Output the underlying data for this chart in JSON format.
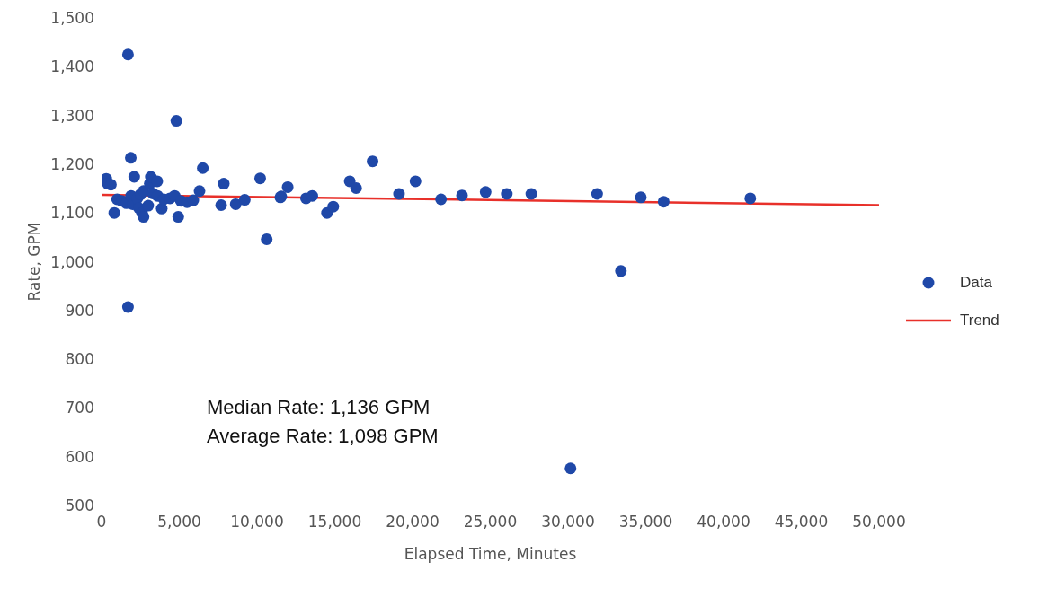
{
  "chart_data": {
    "type": "scatter",
    "xlabel": "Elapsed Time, Minutes",
    "ylabel": "Rate, GPM",
    "annotations": [
      "Median Rate: 1,136 GPM",
      "Average Rate: 1,098 GPM"
    ],
    "xlim": [
      0,
      50000
    ],
    "xticks": [
      0,
      {
        "value": 5000,
        "label": "5,000"
      },
      {
        "value": 10000,
        "label": "10,000"
      },
      {
        "value": 15000,
        "label": "15,000"
      },
      {
        "value": 20000,
        "label": "20,000"
      },
      {
        "value": 25000,
        "label": "25,000"
      },
      {
        "value": 30000,
        "label": "30,000"
      },
      {
        "value": 35000,
        "label": "35,000"
      },
      {
        "value": 40000,
        "label": "40,000"
      },
      {
        "value": 45000,
        "label": "45,000"
      },
      {
        "value": 50000,
        "label": "50,000"
      }
    ],
    "ylim": [
      500,
      1500
    ],
    "yticks": [
      500,
      600,
      700,
      800,
      900,
      {
        "value": 1000,
        "label": "1,000"
      },
      {
        "value": 1100,
        "label": "1,100"
      },
      {
        "value": 1200,
        "label": "1,200"
      },
      {
        "value": 1300,
        "label": "1,300"
      },
      {
        "value": 1400,
        "label": "1,400"
      },
      {
        "value": 1500,
        "label": "1,500"
      }
    ],
    "grid": false,
    "legend": "right",
    "series": [
      {
        "name": "Data",
        "marker": "circle",
        "color": "#1f48a8",
        "x": [
          300,
          400,
          600,
          820,
          1000,
          1300,
          1600,
          1700,
          1700,
          1880,
          1900,
          2000,
          2100,
          2300,
          2400,
          2500,
          2600,
          2700,
          2700,
          3000,
          3100,
          3170,
          3300,
          3580,
          3600,
          3870,
          4000,
          4400,
          4700,
          4810,
          4930,
          5100,
          5500,
          5900,
          6300,
          6510,
          7690,
          7860,
          8630,
          9210,
          10200,
          10620,
          11500,
          11560,
          11970,
          13150,
          13550,
          14500,
          14900,
          15960,
          16370,
          17430,
          19130,
          20190,
          21830,
          23180,
          24700,
          26060,
          27640,
          30160,
          31870,
          33400,
          34680,
          36150,
          41720
        ],
        "values": [
          1170,
          1160,
          1158,
          1100,
          1128,
          1125,
          1120,
          1425,
          907,
          1213,
          1135,
          1118,
          1174,
          1130,
          1110,
          1138,
          1100,
          1145,
          1092,
          1115,
          1160,
          1174,
          1140,
          1165,
          1135,
          1109,
          1128,
          1130,
          1135,
          1289,
          1092,
          1125,
          1122,
          1126,
          1145,
          1192,
          1116,
          1160,
          1118,
          1127,
          1171,
          1046,
          1132,
          1134,
          1153,
          1130,
          1135,
          1100,
          1113,
          1165,
          1151,
          1206,
          1139,
          1165,
          1128,
          1136,
          1143,
          1139,
          1139,
          576,
          1139,
          981,
          1132,
          1123,
          1130
        ]
      },
      {
        "name": "Trend",
        "type": "line",
        "marker": "none",
        "line_style": "solid",
        "color": "#e8302a",
        "x": [
          0,
          50000
        ],
        "values": [
          1137,
          1116
        ]
      }
    ]
  }
}
